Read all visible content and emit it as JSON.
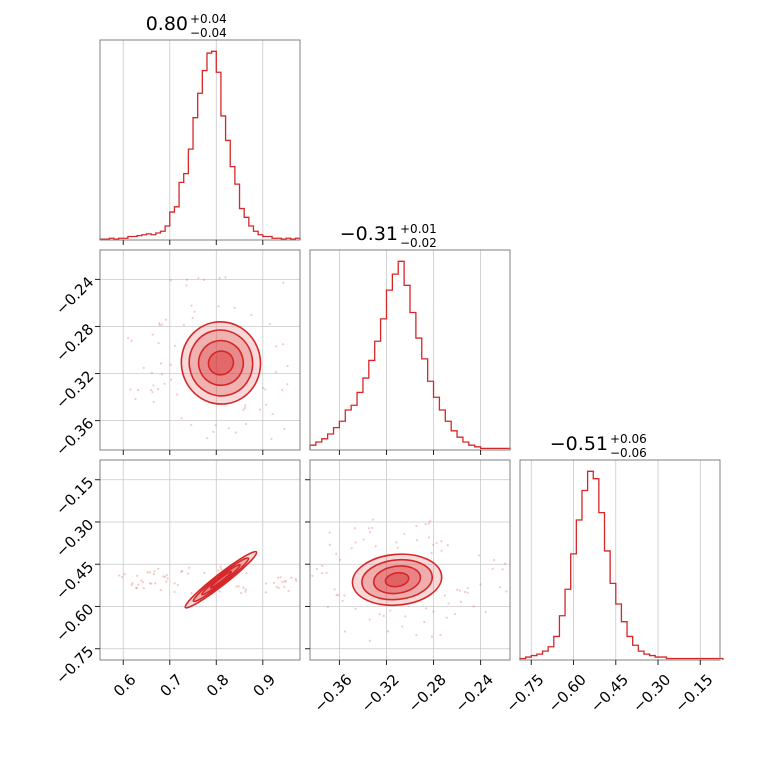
{
  "colors": {
    "accent": "#d62728",
    "grid": "#c8c8c8",
    "frame": "#808080"
  },
  "chart_data": [
    {
      "type": "histogram",
      "parameter_index": 0,
      "title": {
        "value": "0.80",
        "upper": "+0.04",
        "lower": "−0.04"
      },
      "xlim": [
        0.55,
        0.98
      ],
      "xticks": [
        0.6,
        0.7,
        0.8,
        0.9
      ],
      "xtick_labels": [
        "0.6",
        "0.7",
        "0.8",
        "0.9"
      ],
      "grid": true,
      "step_x": [
        0.55,
        0.56,
        0.57,
        0.58,
        0.59,
        0.6,
        0.61,
        0.62,
        0.63,
        0.64,
        0.65,
        0.66,
        0.67,
        0.68,
        0.69,
        0.7,
        0.71,
        0.72,
        0.73,
        0.74,
        0.75,
        0.76,
        0.77,
        0.78,
        0.79,
        0.8,
        0.81,
        0.82,
        0.83,
        0.84,
        0.85,
        0.86,
        0.87,
        0.88,
        0.89,
        0.9,
        0.91,
        0.92,
        0.93,
        0.94,
        0.95,
        0.96,
        0.97
      ],
      "values": [
        0.5,
        0.5,
        1,
        0.5,
        1,
        1,
        2,
        2,
        2.5,
        3,
        3.5,
        3,
        4,
        5,
        8,
        16,
        19,
        33,
        38,
        52,
        70,
        84,
        97,
        107,
        108,
        96,
        71,
        57,
        42,
        32,
        18,
        13,
        8,
        5,
        3,
        2,
        2,
        1,
        1,
        0.5,
        1,
        0.5,
        1
      ]
    },
    {
      "type": "histogram",
      "parameter_index": 1,
      "title": {
        "value": "−0.31",
        "upper": "+0.01",
        "lower": "−0.02"
      },
      "xlim": [
        -0.385,
        -0.215
      ],
      "xticks": [
        -0.36,
        -0.32,
        -0.28,
        -0.24
      ],
      "xtick_labels": [
        "−0.36",
        "−0.32",
        "−0.28",
        "−0.24"
      ],
      "grid": true,
      "step_x": [
        -0.385,
        -0.38,
        -0.375,
        -0.37,
        -0.365,
        -0.36,
        -0.355,
        -0.35,
        -0.345,
        -0.34,
        -0.335,
        -0.33,
        -0.325,
        -0.32,
        -0.315,
        -0.31,
        -0.305,
        -0.3,
        -0.295,
        -0.29,
        -0.285,
        -0.28,
        -0.275,
        -0.27,
        -0.265,
        -0.26,
        -0.255,
        -0.25,
        -0.245,
        -0.24,
        -0.235,
        -0.23,
        -0.225,
        -0.22
      ],
      "values": [
        3,
        5,
        7,
        10,
        14,
        18,
        25,
        28,
        36,
        45,
        56,
        68,
        82,
        100,
        110,
        118,
        103,
        86,
        70,
        57,
        43,
        33,
        25,
        18,
        12,
        8,
        5,
        3,
        2,
        1,
        1,
        1,
        1,
        1
      ]
    },
    {
      "type": "histogram",
      "parameter_index": 2,
      "title": {
        "value": "−0.51",
        "upper": "+0.06",
        "lower": "−0.06"
      },
      "xlim": [
        -0.79,
        -0.08
      ],
      "xticks": [
        -0.75,
        -0.6,
        -0.45,
        -0.3,
        -0.15
      ],
      "xtick_labels": [
        "−0.75",
        "−0.60",
        "−0.45",
        "−0.30",
        "−0.15"
      ],
      "grid": true,
      "step_x": [
        -0.79,
        -0.77,
        -0.75,
        -0.73,
        -0.71,
        -0.69,
        -0.67,
        -0.65,
        -0.63,
        -0.61,
        -0.59,
        -0.57,
        -0.55,
        -0.53,
        -0.51,
        -0.49,
        -0.47,
        -0.45,
        -0.43,
        -0.41,
        -0.39,
        -0.37,
        -0.35,
        -0.33,
        -0.31,
        -0.29,
        -0.27,
        -0.25,
        -0.23,
        -0.21,
        -0.19,
        -0.17,
        -0.15,
        -0.13,
        -0.11,
        -0.09
      ],
      "values": [
        1,
        2,
        3,
        4,
        6,
        9,
        16,
        30,
        48,
        72,
        95,
        115,
        128,
        123,
        100,
        74,
        52,
        38,
        26,
        16,
        10,
        6,
        4,
        3,
        2,
        2,
        1,
        1,
        1,
        1,
        1,
        1,
        1,
        1,
        1,
        1
      ]
    },
    {
      "type": "contour",
      "x_parameter": 0,
      "y_parameter": 1,
      "xlim": [
        0.55,
        0.98
      ],
      "ylim": [
        -0.385,
        -0.215
      ],
      "yticks": [
        -0.24,
        -0.28,
        -0.32,
        -0.36
      ],
      "ytick_labels": [
        "−0.24",
        "−0.28",
        "−0.32",
        "−0.36"
      ],
      "center": [
        0.81,
        -0.311
      ],
      "levels": [
        {
          "rx": 0.085,
          "ry": 0.035,
          "rot": -10,
          "fill_opacity": 0.18
        },
        {
          "rx": 0.068,
          "ry": 0.028,
          "rot": -12,
          "fill_opacity": 0.22
        },
        {
          "rx": 0.048,
          "ry": 0.019,
          "rot": -14,
          "fill_opacity": 0.28
        },
        {
          "rx": 0.027,
          "ry": 0.01,
          "rot": -18,
          "fill_opacity": 0.34
        }
      ],
      "grid": true
    },
    {
      "type": "contour",
      "x_parameter": 0,
      "y_parameter": 2,
      "xlim": [
        0.55,
        0.98
      ],
      "ylim": [
        -0.79,
        -0.08
      ],
      "yticks": [
        -0.15,
        -0.3,
        -0.45,
        -0.6,
        -0.75
      ],
      "ytick_labels": [
        "−0.15",
        "−0.30",
        "−0.45",
        "−0.60",
        "−0.75"
      ],
      "center": [
        0.81,
        -0.505
      ],
      "levels": [
        {
          "rx": 0.097,
          "ry": 0.02,
          "rot": -38,
          "fill_opacity": 0.18
        },
        {
          "rx": 0.075,
          "ry": 0.015,
          "rot": -38,
          "fill_opacity": 0.24
        },
        {
          "rx": 0.052,
          "ry": 0.01,
          "rot": -38,
          "fill_opacity": 0.3
        },
        {
          "rx": 0.028,
          "ry": 0.006,
          "rot": -38,
          "fill_opacity": 0.36
        }
      ],
      "grid": true
    },
    {
      "type": "contour",
      "x_parameter": 1,
      "y_parameter": 2,
      "xlim": [
        -0.385,
        -0.215
      ],
      "ylim": [
        -0.79,
        -0.08
      ],
      "center": [
        -0.311,
        -0.505
      ],
      "levels": [
        {
          "rx": 0.038,
          "ry": 0.09,
          "rot": -5,
          "fill_opacity": 0.18
        },
        {
          "rx": 0.03,
          "ry": 0.07,
          "rot": -6,
          "fill_opacity": 0.24
        },
        {
          "rx": 0.02,
          "ry": 0.048,
          "rot": -8,
          "fill_opacity": 0.3
        },
        {
          "rx": 0.01,
          "ry": 0.024,
          "rot": -10,
          "fill_opacity": 0.36
        }
      ],
      "grid": true
    }
  ]
}
